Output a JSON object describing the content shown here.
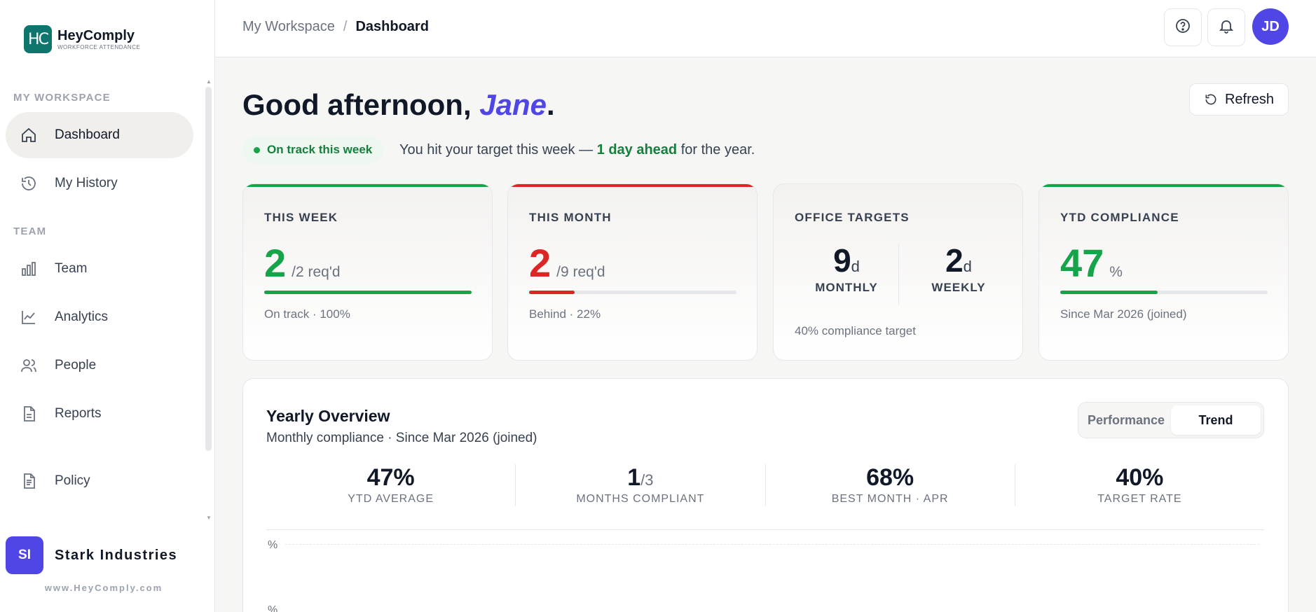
{
  "brand": {
    "name": "HeyComply",
    "tagline": "WORKFORCE ATTENDANCE",
    "mark": "HC"
  },
  "sidebar": {
    "section_workspace": "MY WORKSPACE",
    "section_team": "TEAM",
    "items": [
      {
        "label": "Dashboard",
        "icon": "home-icon"
      },
      {
        "label": "My History",
        "icon": "history-icon"
      },
      {
        "label": "Team",
        "icon": "bar-chart-icon"
      },
      {
        "label": "Analytics",
        "icon": "line-chart-icon"
      },
      {
        "label": "People",
        "icon": "people-icon"
      },
      {
        "label": "Reports",
        "icon": "document-icon"
      },
      {
        "label": "Policy",
        "icon": "policy-icon"
      }
    ],
    "org_initials": "SI",
    "org_name": "Stark Industries",
    "url": "www.HeyComply.com"
  },
  "header": {
    "breadcrumb_parent": "My Workspace",
    "breadcrumb_sep": "/",
    "breadcrumb_current": "Dashboard",
    "avatar_initials": "JD"
  },
  "greeting": {
    "prefix": "Good afternoon, ",
    "name": "Jane",
    "suffix": "."
  },
  "refresh_label": "Refresh",
  "status": {
    "pill": "On track this week",
    "msg_prefix": "You hit your target this week — ",
    "msg_highlight": "1 day ahead",
    "msg_suffix": " for the year."
  },
  "cards": {
    "week": {
      "title": "THIS WEEK",
      "value": "2",
      "sub": "/2 req'd",
      "foot": "On track · 100%",
      "progress": 1.0,
      "color": "#16a34a"
    },
    "month": {
      "title": "THIS MONTH",
      "value": "2",
      "sub": "/9 req'd",
      "foot": "Behind · 22%",
      "progress": 0.22,
      "color": "#dc2626"
    },
    "targets": {
      "title": "OFFICE TARGETS",
      "monthly_value": "9",
      "monthly_unit": "d",
      "monthly_label": "MONTHLY",
      "weekly_value": "2",
      "weekly_unit": "d",
      "weekly_label": "WEEKLY",
      "foot": "40% compliance target"
    },
    "ytd": {
      "title": "YTD COMPLIANCE",
      "value": "47",
      "sub": "%",
      "foot": "Since Mar 2026 (joined)",
      "progress": 0.47,
      "color": "#16a34a"
    }
  },
  "overview": {
    "title": "Yearly Overview",
    "subtitle": "Monthly compliance · Since Mar 2026 (joined)",
    "toggle": [
      "Performance",
      "Trend"
    ],
    "toggle_active": "Trend",
    "stats": [
      {
        "value": "47%",
        "label": "YTD AVERAGE"
      },
      {
        "value": "1",
        "suffix": "/3",
        "label": "MONTHS COMPLIANT"
      },
      {
        "value": "68%",
        "label": "BEST MONTH · APR"
      },
      {
        "value": "40%",
        "label": "TARGET RATE"
      }
    ],
    "axis_unit": "%"
  }
}
